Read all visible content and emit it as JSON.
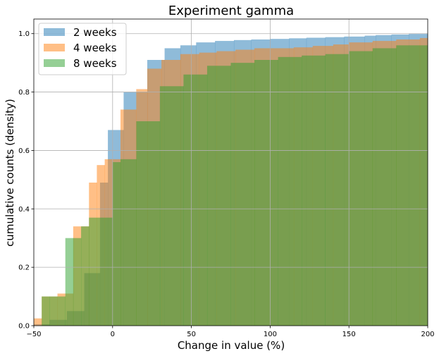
{
  "chart_data": {
    "type": "histogram-step",
    "title": "Experiment gamma",
    "xlabel": "Change in value (%)",
    "ylabel": "cumulative counts (density)",
    "xlim": [
      -50,
      200
    ],
    "ylim": [
      0,
      1.05
    ],
    "xticks": [
      -50,
      0,
      50,
      100,
      150,
      200
    ],
    "yticks": [
      0.0,
      0.2,
      0.4,
      0.6,
      0.8,
      1.0
    ],
    "xtick_labels": [
      "−50",
      "0",
      "50",
      "100",
      "150",
      "200"
    ],
    "ytick_labels": [
      "0.0",
      "0.2",
      "0.4",
      "0.6",
      "0.8",
      "1.0"
    ],
    "grid": true,
    "legend_position": "top-left",
    "series": [
      {
        "name": "2 weeks",
        "color": "#1f77b4",
        "edges": [
          -50,
          -40,
          -29,
          -18,
          -8,
          -3,
          7,
          22,
          33,
          43,
          53,
          65,
          77,
          88,
          100,
          112,
          123,
          135,
          147,
          160,
          167,
          177,
          188,
          200
        ],
        "values": [
          0.005,
          0.02,
          0.05,
          0.18,
          0.49,
          0.67,
          0.8,
          0.91,
          0.95,
          0.96,
          0.97,
          0.975,
          0.978,
          0.98,
          0.982,
          0.984,
          0.986,
          0.988,
          0.99,
          0.993,
          0.995,
          0.997,
          0.999
        ]
      },
      {
        "name": "4 weeks",
        "color": "#ff7f0e",
        "edges": [
          -50,
          -45,
          -35,
          -25,
          -15,
          -10,
          -5,
          5,
          15,
          22,
          31,
          43,
          55,
          66,
          78,
          90,
          100,
          115,
          127,
          140,
          150,
          165,
          180,
          195,
          200
        ],
        "values": [
          0.025,
          0.1,
          0.11,
          0.34,
          0.49,
          0.55,
          0.57,
          0.74,
          0.81,
          0.88,
          0.91,
          0.93,
          0.935,
          0.94,
          0.945,
          0.95,
          0.95,
          0.953,
          0.958,
          0.963,
          0.97,
          0.975,
          0.98,
          0.985
        ]
      },
      {
        "name": "8 weeks",
        "color": "#2ca02c",
        "edges": [
          -50,
          -45,
          -40,
          -30,
          -25,
          -20,
          -15,
          0,
          5,
          15,
          30,
          45,
          60,
          75,
          90,
          105,
          120,
          135,
          150,
          165,
          180,
          200
        ],
        "values": [
          0.0,
          0.1,
          0.1,
          0.3,
          0.3,
          0.34,
          0.37,
          0.56,
          0.57,
          0.7,
          0.82,
          0.86,
          0.89,
          0.9,
          0.91,
          0.92,
          0.925,
          0.93,
          0.94,
          0.95,
          0.96
        ]
      }
    ]
  }
}
